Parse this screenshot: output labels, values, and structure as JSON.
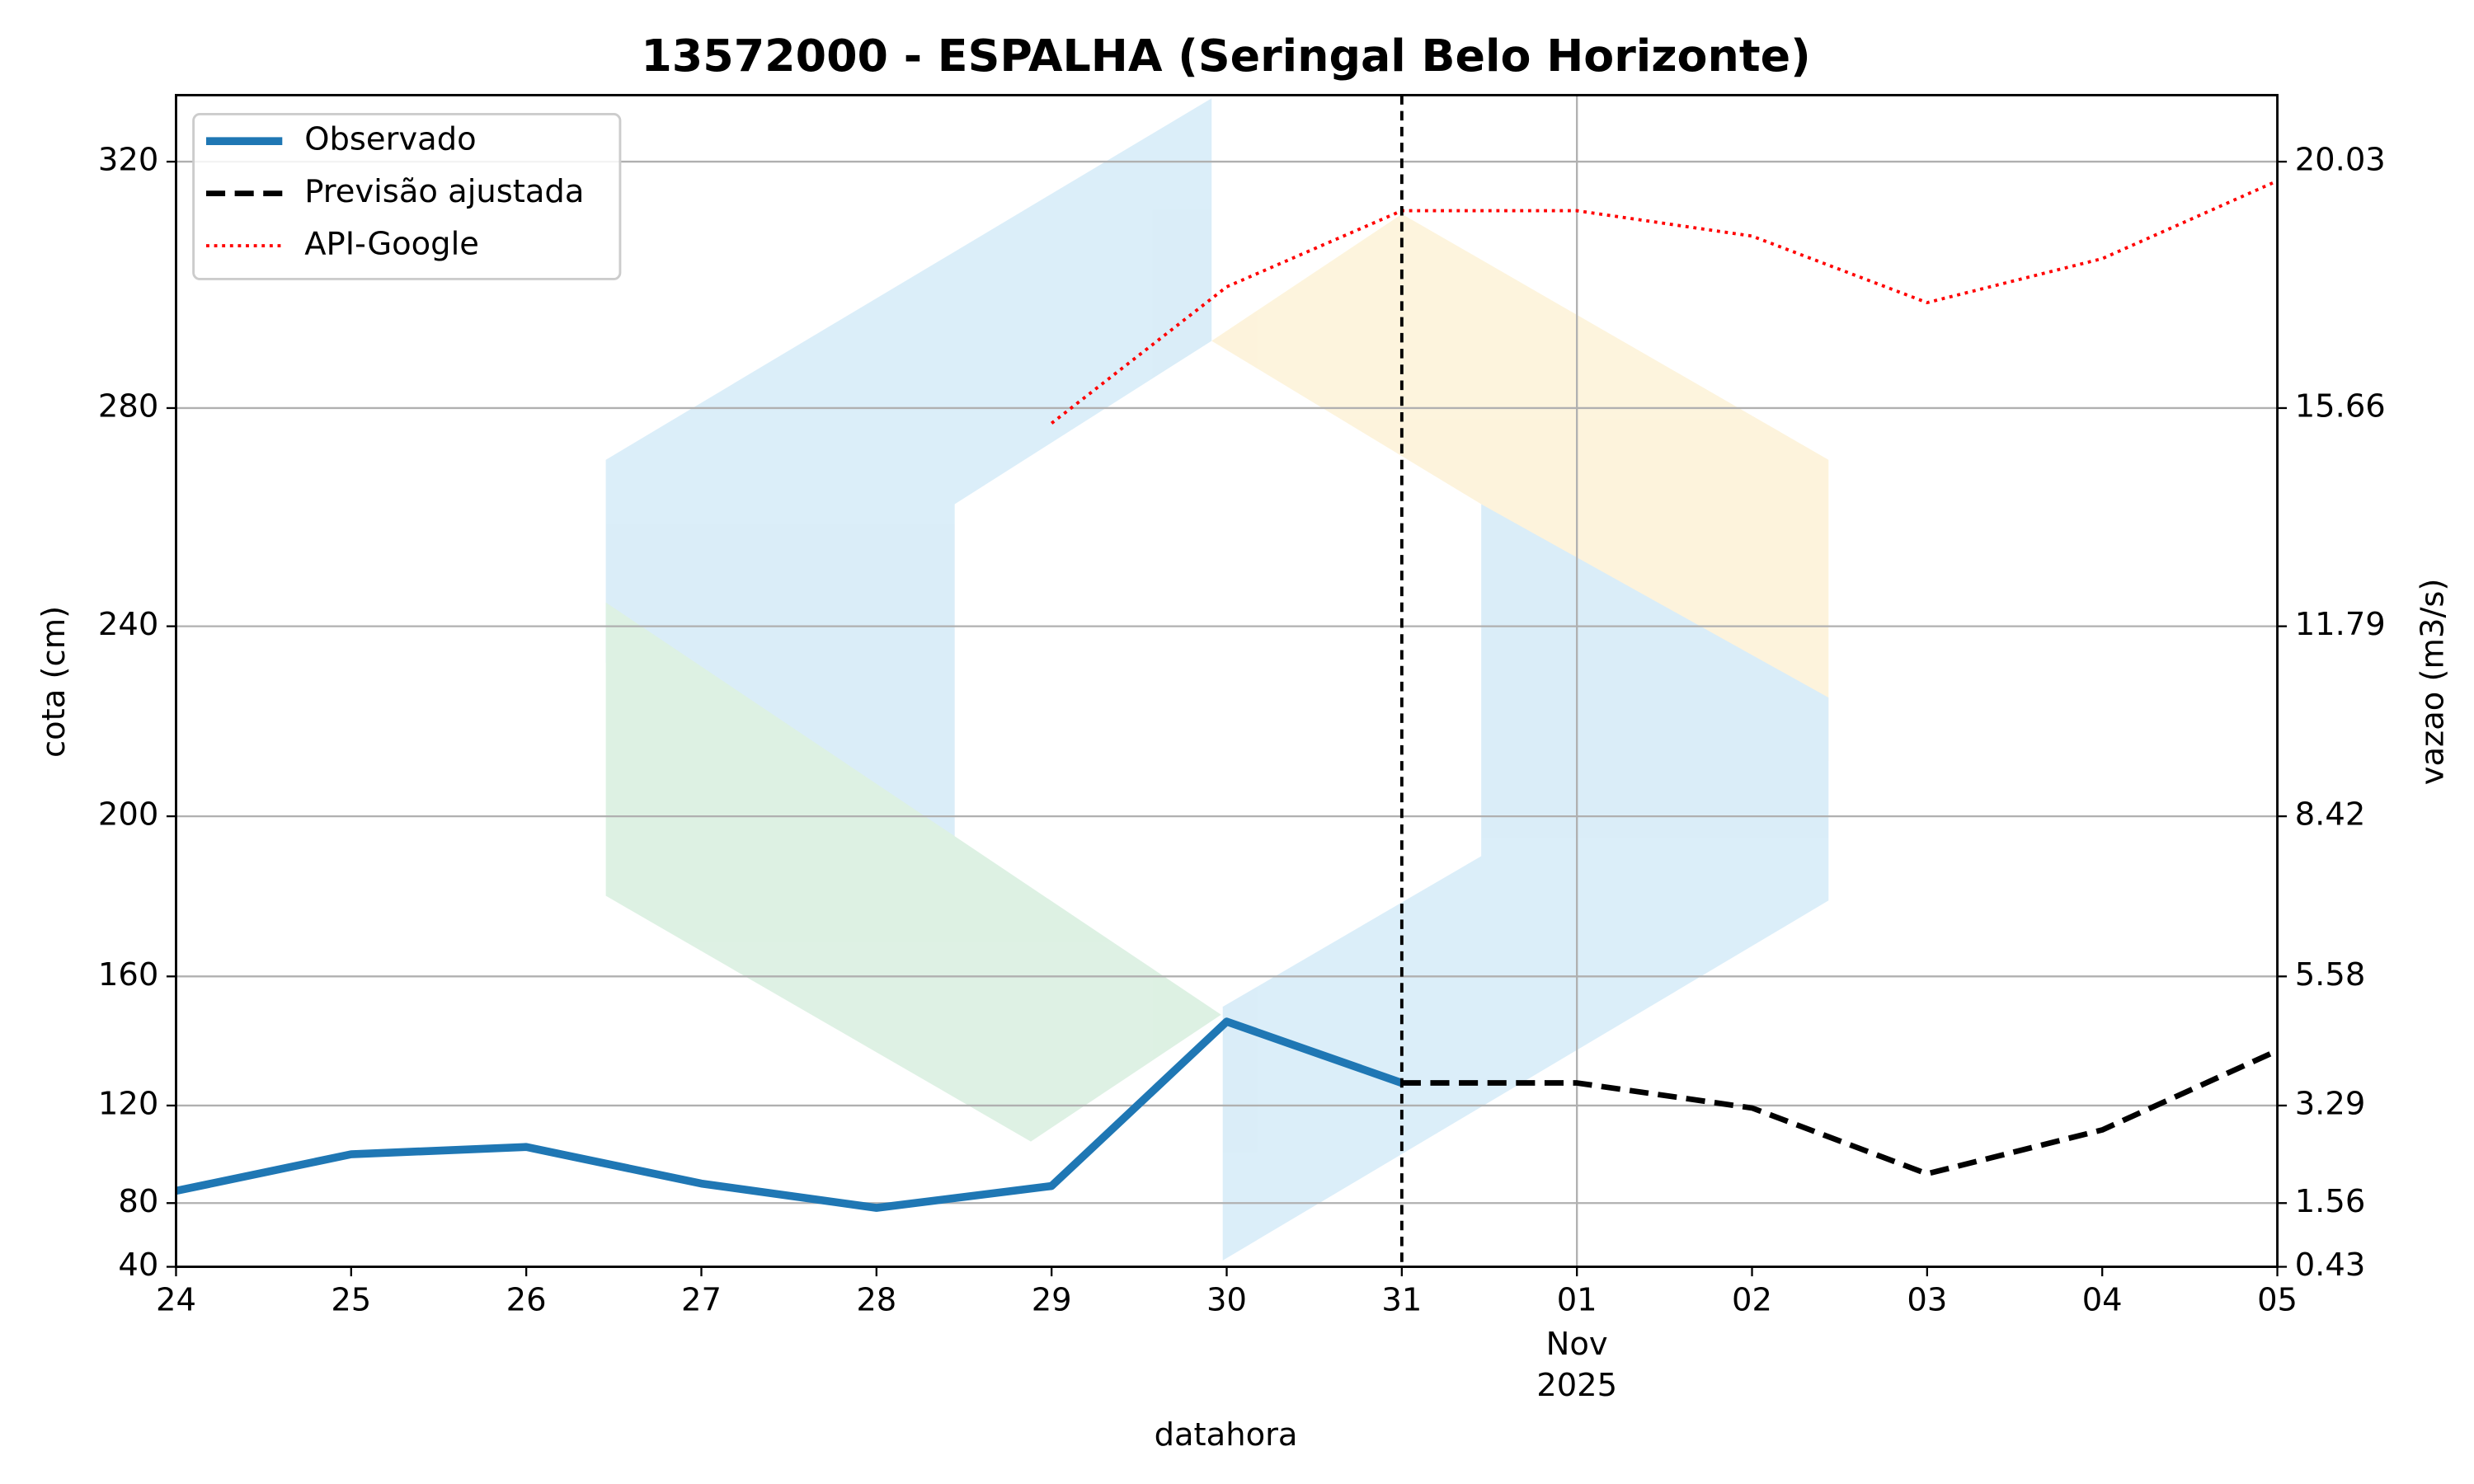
{
  "chart_data": {
    "type": "line",
    "title": "13572000 - ESPALHA (Seringal Belo Horizonte)",
    "xlabel": "datahora",
    "ylabel": "cota (cm)",
    "y2label": "vazao (m3/s)",
    "categories": [
      "24",
      "25",
      "26",
      "27",
      "28",
      "29",
      "30",
      "31",
      "01",
      "02",
      "03",
      "04",
      "05"
    ],
    "xtick_sublabels": [
      "Nov",
      "2025"
    ],
    "sublabel_category": "01",
    "xgrid_category": "01",
    "vline_category": "31",
    "ylim": [
      40,
      334
    ],
    "yticks": [
      40,
      80,
      120,
      160,
      200,
      240,
      280,
      320
    ],
    "y2lim": [
      0.43,
      21.21
    ],
    "y2ticks": [
      0.43,
      1.56,
      3.29,
      5.58,
      8.42,
      11.79,
      15.66,
      20.03
    ],
    "grid": true,
    "legend": "upper left",
    "series": [
      {
        "name": "Observado",
        "color": "#1f77b4",
        "style": "solid",
        "values": [
          85,
          100,
          103,
          88,
          77,
          87,
          146,
          127,
          null,
          null,
          null,
          null,
          null
        ]
      },
      {
        "name": "Previsão ajustada",
        "color": "#000000",
        "style": "dashed",
        "values": [
          null,
          null,
          null,
          null,
          null,
          null,
          null,
          127,
          127,
          119,
          92,
          110,
          137
        ]
      },
      {
        "name": "API-Google",
        "color": "#ff0000",
        "style": "dotted",
        "axis": "y2",
        "values": [
          null,
          null,
          null,
          null,
          null,
          15.39,
          17.81,
          19.16,
          19.16,
          18.71,
          17.53,
          18.31,
          19.69
        ]
      }
    ]
  }
}
